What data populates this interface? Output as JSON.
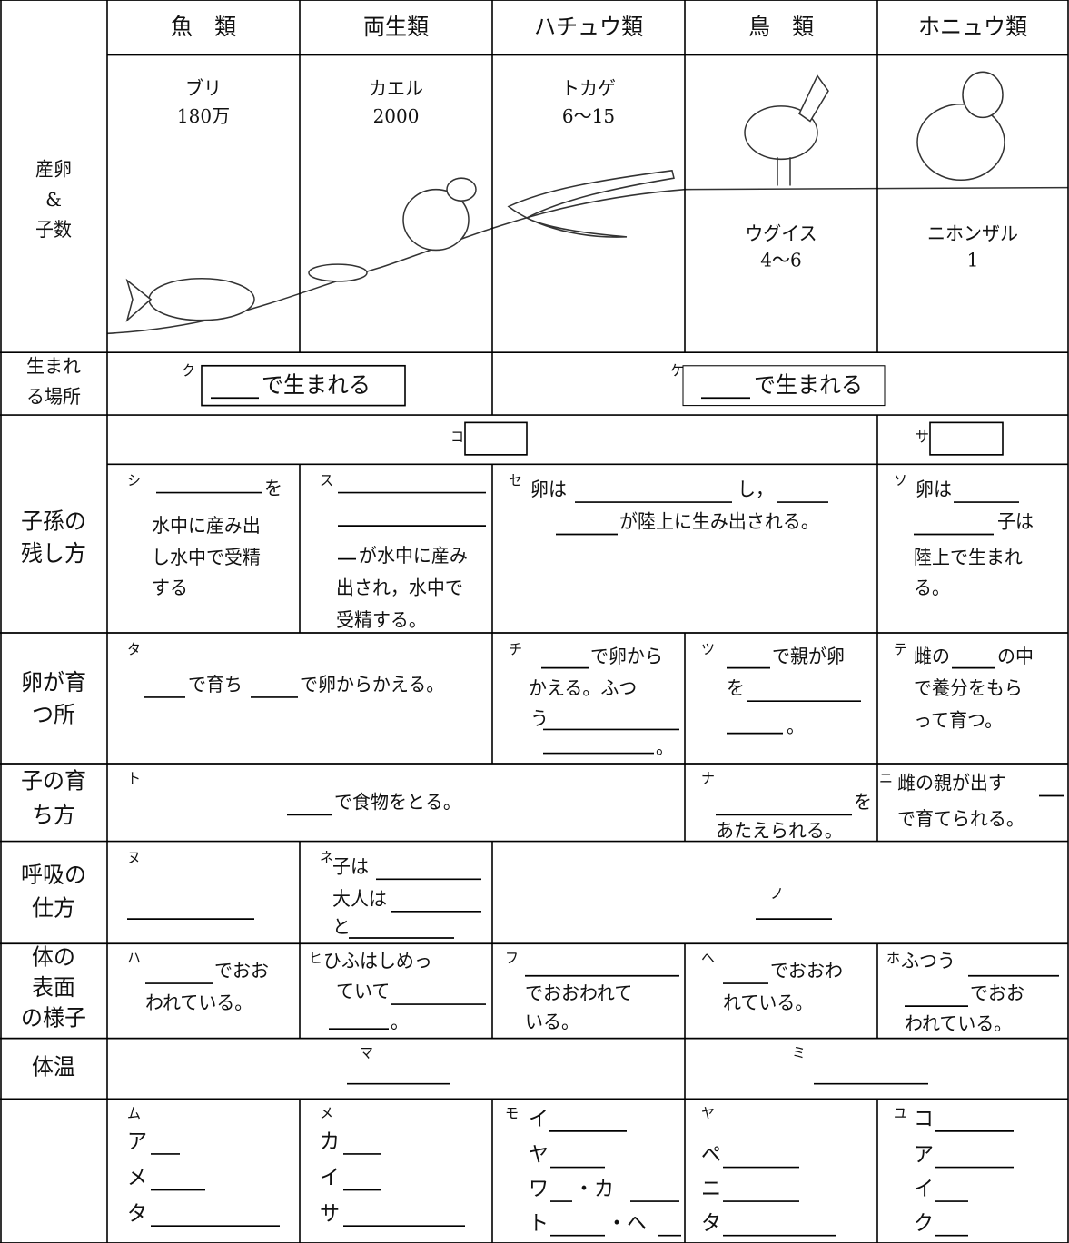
{
  "header": [
    "魚　類",
    "両生類",
    "ハチュウ類",
    "鳥　類",
    "ホニュウ類"
  ],
  "eggs": {
    "label": [
      "産卵",
      "&",
      "子数"
    ],
    "animals": [
      {
        "name": "ブリ",
        "count": "180万"
      },
      {
        "name": "カエル",
        "count": 2000
      },
      {
        "name": "トカゲ",
        "count": "6〜15"
      },
      {
        "name": "ウグイス",
        "count": "4〜6"
      },
      {
        "name": "ニホンザル",
        "count": 1
      }
    ]
  },
  "birthplace": {
    "label": [
      "生まれ",
      "る場所"
    ],
    "cells": [
      {
        "mark": "ク",
        "texts": [
          "で生まれる"
        ]
      },
      {
        "mark": "ケ",
        "texts": [
          "で生まれる"
        ]
      }
    ]
  },
  "reproduction": {
    "label": [
      "子孫の",
      "残し方"
    ],
    "groups": [
      "コ",
      "サ"
    ],
    "cells": [
      {
        "mark": "シ",
        "texts": [
          "を",
          "水中に産み出",
          "し水中で受精",
          "する"
        ]
      },
      {
        "mark": "ス",
        "texts": [
          "が水中に産み",
          "出され，水中で",
          "受精する。"
        ]
      },
      {
        "mark": "セ",
        "texts": [
          "卵は",
          "し，",
          "が陸上に生み出される。"
        ]
      },
      {
        "mark": "ソ",
        "texts": [
          "卵は",
          "子は",
          "陸上で生まれ",
          "る。"
        ]
      }
    ]
  },
  "nursery": {
    "label": [
      "卵が育",
      "つ所"
    ],
    "cells": [
      {
        "mark": "タ",
        "texts": [
          "で育ち",
          "で卵からかえる。"
        ]
      },
      {
        "mark": "チ",
        "texts": [
          "で卵から",
          "かえる。ふつ",
          "う",
          "。"
        ]
      },
      {
        "mark": "ツ",
        "texts": [
          "で親が卵",
          "を",
          "。"
        ]
      },
      {
        "mark": "テ",
        "texts": [
          "雌の",
          "の中",
          "で養分をもら",
          "って育つ。"
        ]
      }
    ]
  },
  "raising": {
    "label": [
      "子の育",
      "ち方"
    ],
    "cells": [
      {
        "mark": "ト",
        "texts": [
          "で食物をとる。"
        ]
      },
      {
        "mark": "ナ",
        "texts": [
          "を",
          "あたえられる。"
        ]
      },
      {
        "mark": "ニ",
        "texts": [
          "雌の親が出す",
          "で育てられる。"
        ]
      }
    ]
  },
  "breathing": {
    "label": [
      "呼吸の",
      "仕方"
    ],
    "cells": [
      {
        "mark": "ヌ"
      },
      {
        "mark": "ネ",
        "texts": [
          "子は",
          "大人は",
          "と"
        ]
      },
      {
        "mark": "ノ"
      }
    ]
  },
  "surface": {
    "label": [
      "体の",
      "表面",
      "の様子"
    ],
    "cells": [
      {
        "mark": "ハ",
        "texts": [
          "でおお",
          "われている。"
        ]
      },
      {
        "mark": "ヒ",
        "texts": [
          "ひふはしめっ",
          "ていて",
          "。"
        ]
      },
      {
        "mark": "フ",
        "texts": [
          "でおおわれて",
          "いる。"
        ]
      },
      {
        "mark": "ヘ",
        "texts": [
          "でおおわ",
          "れている。"
        ]
      },
      {
        "mark": "ホ",
        "texts": [
          "ふつう",
          "でおお",
          "われている。"
        ]
      }
    ]
  },
  "temperature": {
    "label": [
      "体温"
    ],
    "cells": [
      {
        "mark": "マ"
      },
      {
        "mark": "ミ"
      }
    ]
  },
  "examples": {
    "cells": [
      {
        "mark": "ム",
        "texts": [
          "ア",
          "メ",
          "タ"
        ]
      },
      {
        "mark": "メ",
        "texts": [
          "カ",
          "イ",
          "サ"
        ]
      },
      {
        "mark": "モ",
        "texts": [
          "イ",
          "ヤ",
          "ワ",
          "・カ",
          "ト",
          "・ヘ"
        ]
      },
      {
        "mark": "ヤ",
        "texts": [
          "ペ",
          "ニ",
          "タ"
        ]
      },
      {
        "mark": "ユ",
        "texts": [
          "コ",
          "ア",
          "イ",
          "ク"
        ]
      }
    ]
  }
}
